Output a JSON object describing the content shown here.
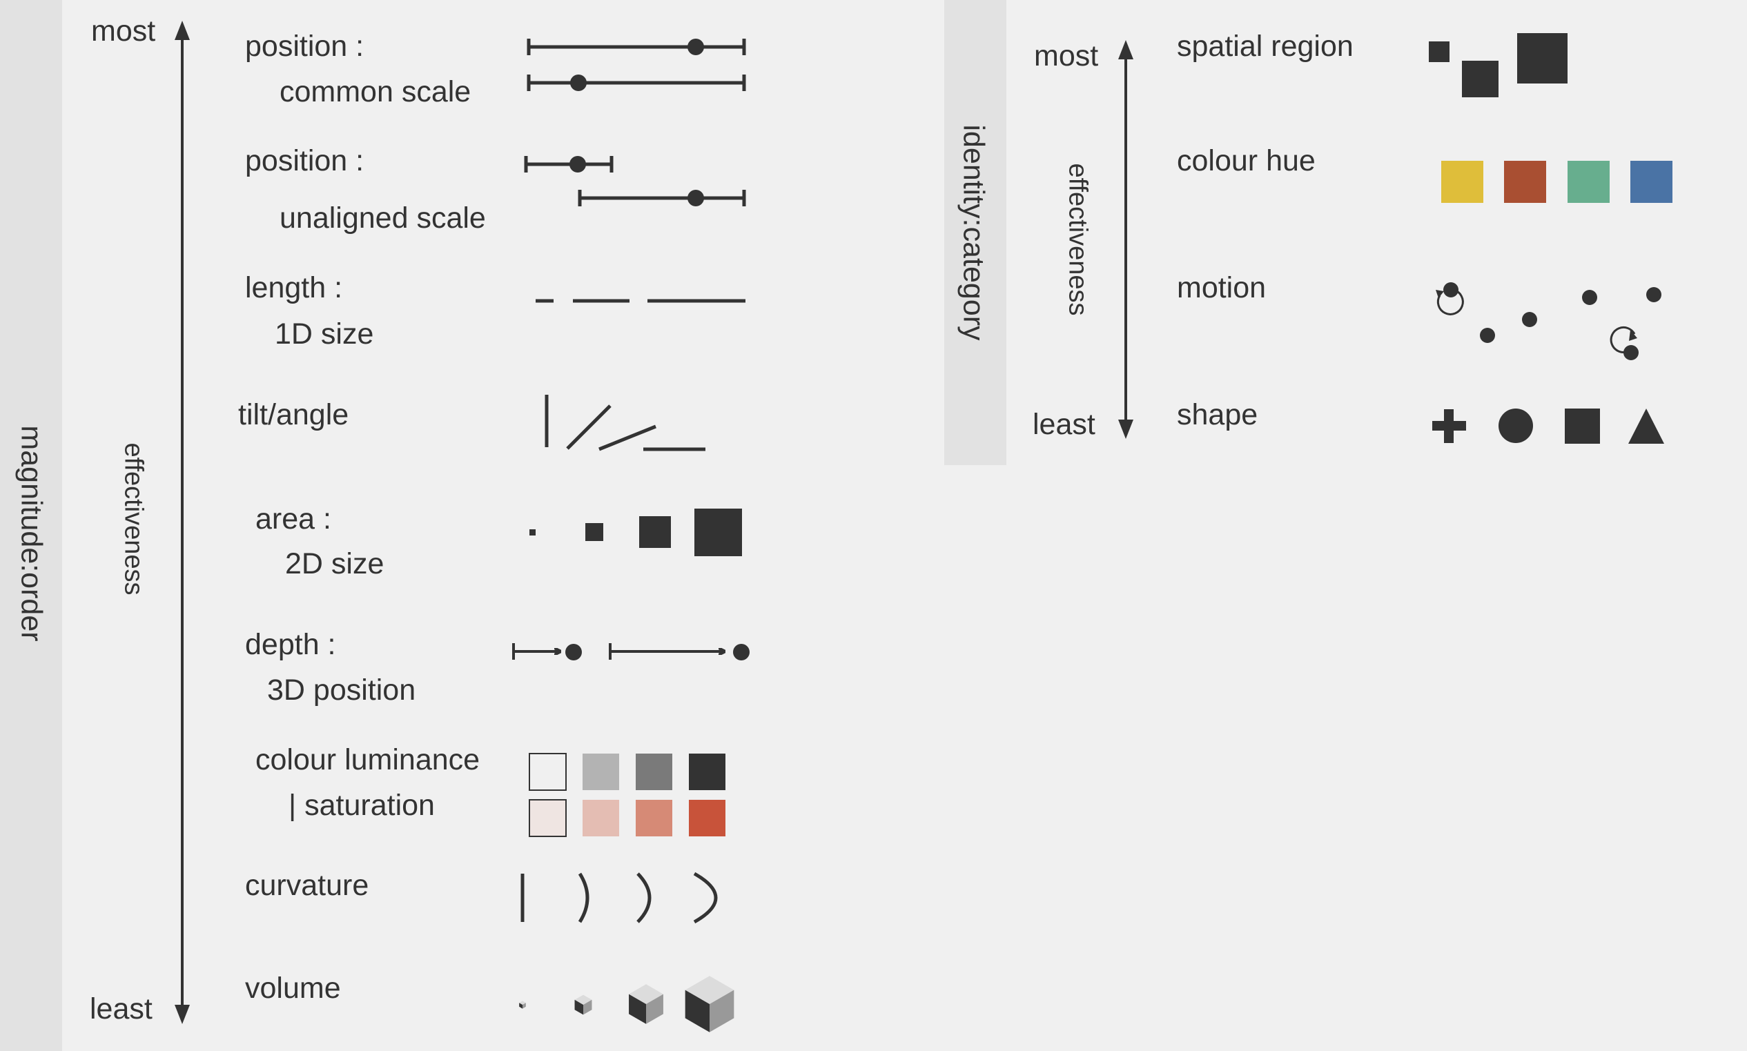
{
  "colors": {
    "ink": "#333333",
    "background": "#f0f0f0",
    "band": "#e2e2e2",
    "hue_yellow": "#dfbe3a",
    "hue_red": "#a94f32",
    "hue_green": "#67ae8e",
    "hue_blue": "#4a73a5",
    "luminance": [
      "#f0f0f0",
      "#b3b3b3",
      "#7a7a7a",
      "#333333"
    ],
    "saturation": [
      "#efe5e2",
      "#e4bdb3",
      "#d68a76",
      "#c8533a"
    ]
  },
  "magnitude": {
    "section_label": "magnitude:order",
    "axis_label": "effectiveness",
    "most": "most",
    "least": "least",
    "channels": [
      {
        "line1": "position :",
        "line2": "common scale",
        "icon": "position-common-scale-icon"
      },
      {
        "line1": "position :",
        "line2": "unaligned scale",
        "icon": "position-unaligned-scale-icon"
      },
      {
        "line1": "length :",
        "line2": "1D size",
        "icon": "length-icon"
      },
      {
        "line1": "tilt/angle",
        "line2": "",
        "icon": "tilt-angle-icon"
      },
      {
        "line1": "area :",
        "line2": "2D size",
        "icon": "area-icon"
      },
      {
        "line1": "depth :",
        "line2": "3D position",
        "icon": "depth-icon"
      },
      {
        "line1": "colour luminance",
        "line2": "| saturation",
        "icon": "colour-luminance-saturation-icon"
      },
      {
        "line1": "curvature",
        "line2": "",
        "icon": "curvature-icon"
      },
      {
        "line1": "volume",
        "line2": "",
        "icon": "volume-icon"
      }
    ]
  },
  "identity": {
    "section_label": "identity:category",
    "axis_label": "effectiveness",
    "most": "most",
    "least": "least",
    "channels": [
      {
        "label": "spatial region",
        "icon": "spatial-region-icon"
      },
      {
        "label": "colour hue",
        "icon": "colour-hue-icon"
      },
      {
        "label": "motion",
        "icon": "motion-icon"
      },
      {
        "label": "shape",
        "icon": "shape-icon"
      }
    ]
  }
}
